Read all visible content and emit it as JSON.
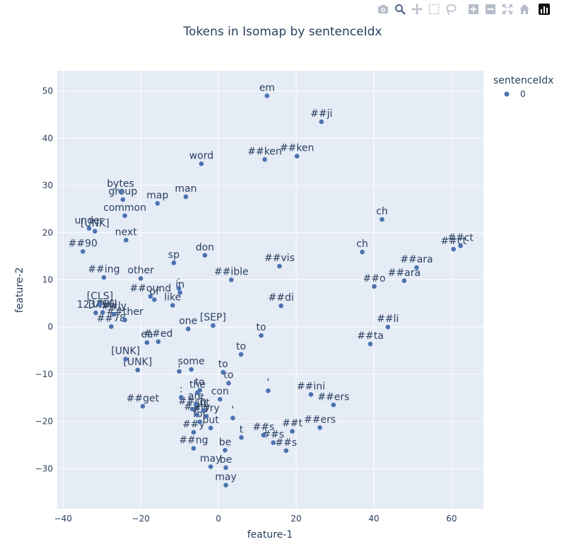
{
  "toolbar": {
    "icons": [
      "camera-icon",
      "zoom-icon",
      "pan-icon",
      "box-select-icon",
      "lasso-icon",
      "zoom-in-icon",
      "zoom-out-icon",
      "autoscale-icon",
      "reset-axes-icon",
      "plotly-logo-icon"
    ],
    "icon_color": "#b5bcc8",
    "active_icon_color": "#506784"
  },
  "chart_data": {
    "type": "scatter",
    "title": "Tokens in Isomap by sentenceIdx",
    "xlabel": "feature-1",
    "ylabel": "feature-2",
    "xlim": [
      -41.5,
      68.2
    ],
    "ylim": [
      -38.5,
      54.3
    ],
    "xticks": [
      -40,
      -20,
      0,
      20,
      40,
      60
    ],
    "yticks": [
      -30,
      -20,
      -10,
      0,
      10,
      20,
      30,
      40,
      50
    ],
    "grid": true,
    "plot_bgcolor": "#e5ecf6",
    "marker_color": "#4c72b0",
    "legend": {
      "title": "sentenceIdx",
      "entries": [
        "0"
      ],
      "position": "right"
    },
    "series": [
      {
        "name": "0",
        "points": [
          {
            "x": 12.5,
            "y": 49,
            "label": "em"
          },
          {
            "x": 26.5,
            "y": 43.5,
            "label": "##ji"
          },
          {
            "x": 11.9,
            "y": 35.5,
            "label": "##ken"
          },
          {
            "x": 20.2,
            "y": 36.2,
            "label": "##ken"
          },
          {
            "x": -4.4,
            "y": 34.6,
            "label": "word"
          },
          {
            "x": -25.2,
            "y": 28.7,
            "label": "bytes"
          },
          {
            "x": -24.6,
            "y": 27,
            "label": "group"
          },
          {
            "x": -15.7,
            "y": 26.2,
            "label": "map"
          },
          {
            "x": -8.4,
            "y": 27.6,
            "label": "man"
          },
          {
            "x": -24.1,
            "y": 23.6,
            "label": "common"
          },
          {
            "x": 42.1,
            "y": 22.8,
            "label": "ch"
          },
          {
            "x": -31.8,
            "y": 20.3,
            "label": "[UNK]"
          },
          {
            "x": -33.3,
            "y": 20.9,
            "label": "under"
          },
          {
            "x": -23.8,
            "y": 18.4,
            "label": "next"
          },
          {
            "x": -34.9,
            "y": 16,
            "label": "##90"
          },
          {
            "x": 60.5,
            "y": 16.5,
            "label": "##ct"
          },
          {
            "x": 62.3,
            "y": 17.2,
            "label": "##ct"
          },
          {
            "x": -3.5,
            "y": 15.2,
            "label": "don"
          },
          {
            "x": 37,
            "y": 15.9,
            "label": "ch"
          },
          {
            "x": -11.5,
            "y": 13.6,
            "label": "sp"
          },
          {
            "x": 15.7,
            "y": 12.9,
            "label": "##vis"
          },
          {
            "x": 51,
            "y": 12.6,
            "label": "##ara"
          },
          {
            "x": -29.5,
            "y": 10.5,
            "label": "##ing"
          },
          {
            "x": -20,
            "y": 10.3,
            "label": "other"
          },
          {
            "x": 3.3,
            "y": 10,
            "label": "##ible"
          },
          {
            "x": 47.8,
            "y": 9.8,
            "label": "##ara"
          },
          {
            "x": 40.1,
            "y": 8.6,
            "label": "##o"
          },
          {
            "x": -10.2,
            "y": 8.2,
            "label": ":"
          },
          {
            "x": -17.5,
            "y": 6.5,
            "label": "##ound"
          },
          {
            "x": -9.9,
            "y": 7.3,
            "label": "in"
          },
          {
            "x": -16.5,
            "y": 5.8,
            "label": "of"
          },
          {
            "x": -11.8,
            "y": 4.6,
            "label": "like"
          },
          {
            "x": 16.1,
            "y": 4.5,
            "label": "##di"
          },
          {
            "x": -30.5,
            "y": 4.8,
            "label": "[CLS]"
          },
          {
            "x": -29.8,
            "y": 3.1,
            "label": "[UNK]"
          },
          {
            "x": -31.6,
            "y": 3,
            "label": "123456"
          },
          {
            "x": -26.9,
            "y": 2.7,
            "label": "##ly"
          },
          {
            "x": -24.1,
            "y": 1.5,
            "label": "##ther"
          },
          {
            "x": -27.6,
            "y": 0.1,
            "label": "##78"
          },
          {
            "x": -1.4,
            "y": 0.3,
            "label": "[SEP]"
          },
          {
            "x": -7.8,
            "y": -0.4,
            "label": "one"
          },
          {
            "x": 43.6,
            "y": 0,
            "label": "##li"
          },
          {
            "x": 11,
            "y": -1.8,
            "label": "to"
          },
          {
            "x": -15.5,
            "y": -3.1,
            "label": "##ed"
          },
          {
            "x": -18.4,
            "y": -3.3,
            "label": "ea"
          },
          {
            "x": 39.1,
            "y": -3.6,
            "label": "##ta"
          },
          {
            "x": 5.8,
            "y": -5.8,
            "label": "to"
          },
          {
            "x": -23.9,
            "y": -6.8,
            "label": "[UNK]"
          },
          {
            "x": -20.8,
            "y": -9.1,
            "label": "[UNK]"
          },
          {
            "x": -10.1,
            "y": -9.4,
            "label": ","
          },
          {
            "x": -7,
            "y": -9,
            "label": "some"
          },
          {
            "x": 1.2,
            "y": -9.6,
            "label": "to"
          },
          {
            "x": 2.6,
            "y": -11.9,
            "label": "to"
          },
          {
            "x": 12.8,
            "y": -13.5,
            "label": "'"
          },
          {
            "x": 23.8,
            "y": -14.3,
            "label": "##ini"
          },
          {
            "x": -5.4,
            "y": -13.9,
            "label": "the"
          },
          {
            "x": -4.8,
            "y": -13.4,
            "label": "to"
          },
          {
            "x": -9.6,
            "y": -14.9,
            "label": ":"
          },
          {
            "x": 0.4,
            "y": -15.3,
            "label": "con"
          },
          {
            "x": 29.6,
            "y": -16.5,
            "label": "##ers"
          },
          {
            "x": -19.5,
            "y": -16.8,
            "label": "##get"
          },
          {
            "x": -6.7,
            "y": -17.4,
            "label": "##ch"
          },
          {
            "x": -5.8,
            "y": -16.3,
            "label": "are"
          },
          {
            "x": -3.9,
            "y": -17.7,
            "label": "int"
          },
          {
            "x": -5.5,
            "y": -18.6,
            "label": "##ty"
          },
          {
            "x": -3.1,
            "y": -18.9,
            "label": "##ry"
          },
          {
            "x": 3.7,
            "y": -19.3,
            "label": "'"
          },
          {
            "x": -4.8,
            "y": -20.1,
            "label": "for"
          },
          {
            "x": -2,
            "y": -21.4,
            "label": "but"
          },
          {
            "x": -6.4,
            "y": -22.3,
            "label": "##y"
          },
          {
            "x": 19,
            "y": -22.1,
            "label": "##t"
          },
          {
            "x": 26.1,
            "y": -21.3,
            "label": "##ers"
          },
          {
            "x": 11.6,
            "y": -22.9,
            "label": "##s"
          },
          {
            "x": 5.9,
            "y": -23.4,
            "label": "t"
          },
          {
            "x": 14.1,
            "y": -24.5,
            "label": "##s"
          },
          {
            "x": -6.4,
            "y": -25.7,
            "label": "##ng"
          },
          {
            "x": 1.7,
            "y": -26.1,
            "label": "be"
          },
          {
            "x": 17.4,
            "y": -26.2,
            "label": "##s"
          },
          {
            "x": -2,
            "y": -29.6,
            "label": "may"
          },
          {
            "x": 1.9,
            "y": -29.8,
            "label": "be"
          },
          {
            "x": 1.9,
            "y": -33.5,
            "label": "may"
          }
        ]
      }
    ]
  }
}
